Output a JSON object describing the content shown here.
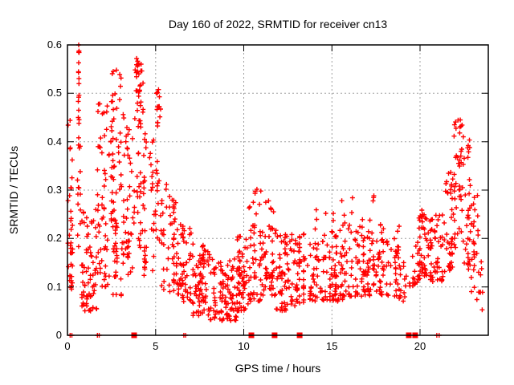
{
  "figure": {
    "title": "Day 160 of 2022, SRMTID for receiver cn13",
    "xlabel": "GPS time / hours",
    "ylabel": "SRMTID / TECUs"
  },
  "chart_data": {
    "type": "scatter",
    "title": "Day 160 of 2022, SRMTID for receiver cn13",
    "xlabel": "GPS time / hours",
    "ylabel": "SRMTID / TECUs",
    "xlim": [
      0,
      23.87
    ],
    "ylim": [
      0,
      0.6
    ],
    "xticks": [
      0,
      5,
      10,
      15,
      20
    ],
    "xtick_labels": [
      "0",
      "5",
      "10",
      "15",
      "20"
    ],
    "yticks": [
      0,
      0.1,
      0.2,
      0.3,
      0.4,
      0.5,
      0.6
    ],
    "ytick_labels": [
      "0",
      "0.1",
      "0.2",
      "0.3",
      "0.4",
      "0.5",
      "0.6"
    ],
    "grid": "dashed-at-major-ticks",
    "legend": "none",
    "marker": "plus",
    "marker_color": "#ff0000",
    "grid_color": "#a0a0a0",
    "frame_color": "#000000",
    "series": [
      {
        "name": "srmtid-values",
        "marker": "plus",
        "segment_format": "[x_start_h, x_end_h, y_min_TECU, y_max_TECU, point_count, low_bias_exponent]",
        "cloud_segments": [
          [
            0.02,
            0.32,
            0.09,
            0.31,
            30,
            1.3
          ],
          [
            0.04,
            0.28,
            0.32,
            0.46,
            6,
            1.0
          ],
          [
            0.58,
            0.72,
            0.15,
            0.44,
            14,
            1.0
          ],
          [
            0.6,
            0.68,
            0.44,
            0.6,
            8,
            1.0
          ],
          [
            0.8,
            1.65,
            0.05,
            0.26,
            70,
            1.5
          ],
          [
            1.7,
            2.4,
            0.1,
            0.48,
            55,
            1.3
          ],
          [
            2.4,
            3.1,
            0.24,
            0.55,
            45,
            1.0
          ],
          [
            2.4,
            3.1,
            0.08,
            0.24,
            30,
            1.2
          ],
          [
            3.1,
            3.7,
            0.12,
            0.46,
            45,
            1.1
          ],
          [
            3.7,
            4.3,
            0.18,
            0.57,
            55,
            1.1
          ],
          [
            4.3,
            4.9,
            0.12,
            0.42,
            40,
            1.2
          ],
          [
            4.9,
            5.3,
            0.18,
            0.51,
            28,
            1.0
          ],
          [
            5.3,
            6.2,
            0.09,
            0.32,
            50,
            1.4
          ],
          [
            6.2,
            7.1,
            0.07,
            0.24,
            55,
            1.4
          ],
          [
            7.1,
            8.1,
            0.04,
            0.19,
            75,
            1.4
          ],
          [
            8.1,
            9.6,
            0.03,
            0.16,
            95,
            1.3
          ],
          [
            9.6,
            10.3,
            0.05,
            0.21,
            60,
            1.3
          ],
          [
            10.3,
            11.1,
            0.07,
            0.31,
            55,
            1.3
          ],
          [
            11.1,
            11.8,
            0.08,
            0.28,
            45,
            1.3
          ],
          [
            11.8,
            12.4,
            0.05,
            0.22,
            45,
            1.3
          ],
          [
            12.4,
            13.6,
            0.06,
            0.21,
            70,
            1.3
          ],
          [
            13.6,
            15.6,
            0.07,
            0.22,
            110,
            1.5
          ],
          [
            13.6,
            15.6,
            0.21,
            0.28,
            8,
            1.0
          ],
          [
            15.6,
            17.6,
            0.08,
            0.24,
            105,
            1.5
          ],
          [
            15.6,
            17.6,
            0.23,
            0.29,
            6,
            1.0
          ],
          [
            17.6,
            18.8,
            0.08,
            0.23,
            65,
            1.4
          ],
          [
            18.8,
            19.4,
            0.07,
            0.16,
            15,
            1.2
          ],
          [
            19.4,
            19.95,
            0.1,
            0.2,
            22,
            1.2
          ],
          [
            19.95,
            21.3,
            0.11,
            0.26,
            95,
            1.4
          ],
          [
            21.3,
            21.9,
            0.13,
            0.34,
            40,
            1.2
          ],
          [
            21.9,
            22.45,
            0.18,
            0.45,
            42,
            1.0
          ],
          [
            22.45,
            22.85,
            0.13,
            0.41,
            32,
            1.1
          ],
          [
            22.85,
            23.35,
            0.07,
            0.3,
            26,
            1.3
          ],
          [
            23.3,
            23.6,
            0.04,
            0.16,
            10,
            1.2
          ]
        ],
        "notable_points": [
          [
            0.64,
            0.6
          ],
          [
            0.64,
            0.585
          ],
          [
            0.64,
            0.563
          ],
          [
            0.63,
            0.543
          ],
          [
            0.65,
            0.52
          ],
          [
            0.64,
            0.492
          ],
          [
            0.64,
            0.465
          ],
          [
            0.65,
            0.438
          ],
          [
            0.64,
            0.408
          ],
          [
            3.92,
            0.572
          ],
          [
            3.97,
            0.556
          ],
          [
            4.05,
            0.54
          ],
          [
            2.78,
            0.548
          ],
          [
            5.05,
            0.5
          ],
          [
            22.28,
            0.445
          ],
          [
            22.32,
            0.432
          ],
          [
            22.25,
            0.418
          ]
        ]
      },
      {
        "name": "flagged-epochs-on-axis",
        "marker": "filled-square",
        "y": 0,
        "x": [
          3.78,
          10.43,
          11.75,
          13.17,
          19.36,
          19.72
        ]
      },
      {
        "name": "zero-value-plus-marks-on-axis",
        "marker": "plus",
        "y": 0,
        "x": [
          0.15,
          0.25,
          1.7,
          1.8,
          6.6,
          6.7,
          20.95,
          21.08
        ]
      }
    ]
  }
}
